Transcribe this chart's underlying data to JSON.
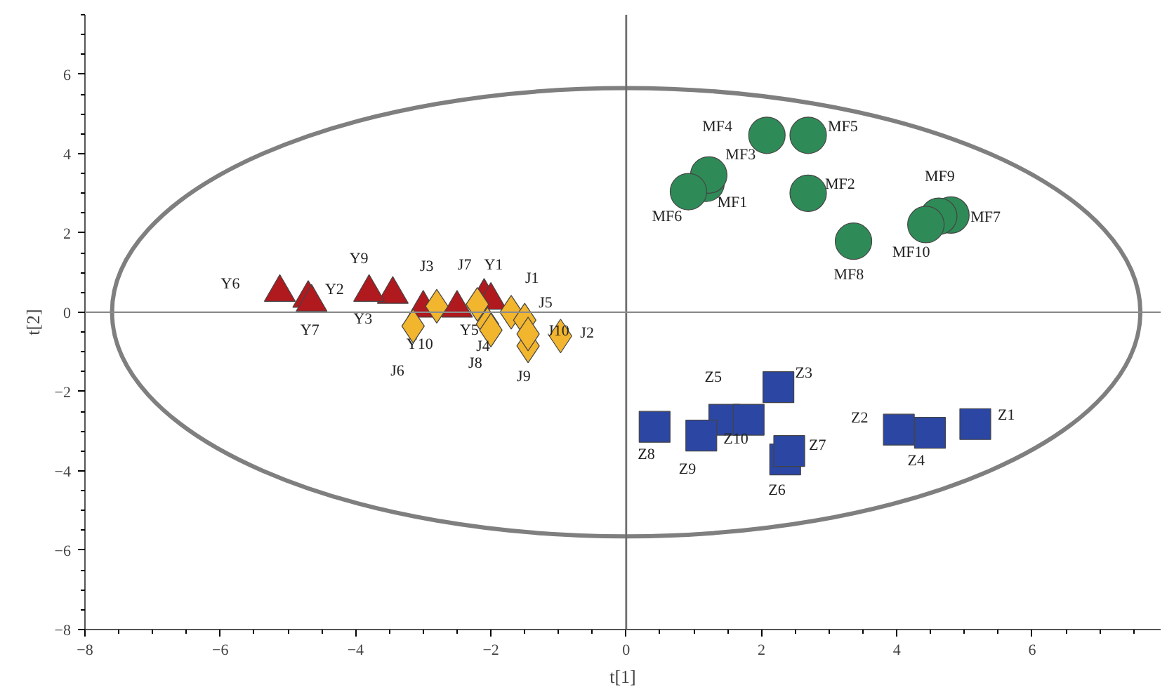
{
  "chart_data": {
    "type": "scatter",
    "xlabel": "t[1]",
    "ylabel": "t[2]",
    "xlim": [
      -8,
      7.9
    ],
    "ylim": [
      -8,
      7.5
    ],
    "xticks": [
      {
        "value": -8,
        "label": "−8"
      },
      {
        "value": -6,
        "label": "−6"
      },
      {
        "value": -4,
        "label": "−4"
      },
      {
        "value": -2,
        "label": "−2"
      },
      0,
      2,
      4,
      6
    ],
    "yticks": [
      {
        "value": -8,
        "label": "−8"
      },
      {
        "value": -6,
        "label": "−6"
      },
      {
        "value": -4,
        "label": "−4"
      },
      {
        "value": -2,
        "label": "−2"
      },
      0,
      2,
      4,
      6
    ],
    "grid": false,
    "ref_lines": [
      {
        "axis": "x",
        "value": 0,
        "color": "#6e6e6e"
      },
      {
        "axis": "y",
        "value": 0,
        "color": "#8c8c8c"
      }
    ],
    "series": [
      {
        "marker": "triangle",
        "color": "#b0191e",
        "x": [
          -2.1,
          -4.7,
          -3.45,
          -2.0,
          -2.5,
          -5.12,
          -4.65,
          -3.8,
          -3.0
        ],
        "values": [
          0.4,
          0.35,
          0.45,
          0.3,
          0.1,
          0.5,
          0.25,
          0.5,
          0.1
        ],
        "value_labels": [
          "Y1",
          "Y2",
          "Y3",
          null,
          "Y5",
          "Y6",
          "Y7",
          "Y9",
          "Y10"
        ]
      },
      {
        "marker": "diamond",
        "color": "#f2b52e",
        "x": [
          -1.7,
          -0.97,
          -2.8,
          -2.05,
          -1.5,
          -3.15,
          -2.2,
          -2.0,
          -1.45,
          -1.45
        ],
        "values": [
          0.0,
          -0.6,
          0.15,
          -0.3,
          -0.2,
          -0.35,
          0.2,
          -0.45,
          -0.85,
          -0.55
        ],
        "value_labels": [
          "J1",
          "J2",
          "J3",
          "J4",
          "J5",
          "J6",
          "J7",
          "J8",
          "J9",
          "J10"
        ]
      },
      {
        "marker": "circle",
        "color": "#2e8b57",
        "x": [
          1.18,
          2.69,
          1.22,
          2.08,
          2.69,
          0.92,
          4.8,
          3.36,
          4.62,
          4.43
        ],
        "values": [
          3.25,
          3.0,
          3.46,
          4.46,
          4.46,
          3.04,
          2.45,
          1.79,
          2.42,
          2.21
        ],
        "value_labels": [
          "MF1",
          "MF2",
          "MF3",
          "MF4",
          "MF5",
          "MF6",
          "MF7",
          "MF8",
          "MF9",
          "MF10"
        ]
      },
      {
        "marker": "square",
        "color": "#2b46a3",
        "x": [
          5.16,
          4.03,
          2.25,
          4.49,
          1.45,
          2.35,
          2.41,
          0.42,
          1.11,
          1.81
        ],
        "values": [
          -2.82,
          -2.96,
          -1.89,
          -3.04,
          -2.71,
          -3.71,
          -3.5,
          -2.89,
          -3.11,
          -2.71
        ],
        "value_labels": [
          "Z1",
          "Z2",
          "Z3",
          "Z4",
          "Z5",
          "Z6",
          "Z7",
          "Z8",
          "Z9",
          "Z10"
        ]
      }
    ]
  }
}
